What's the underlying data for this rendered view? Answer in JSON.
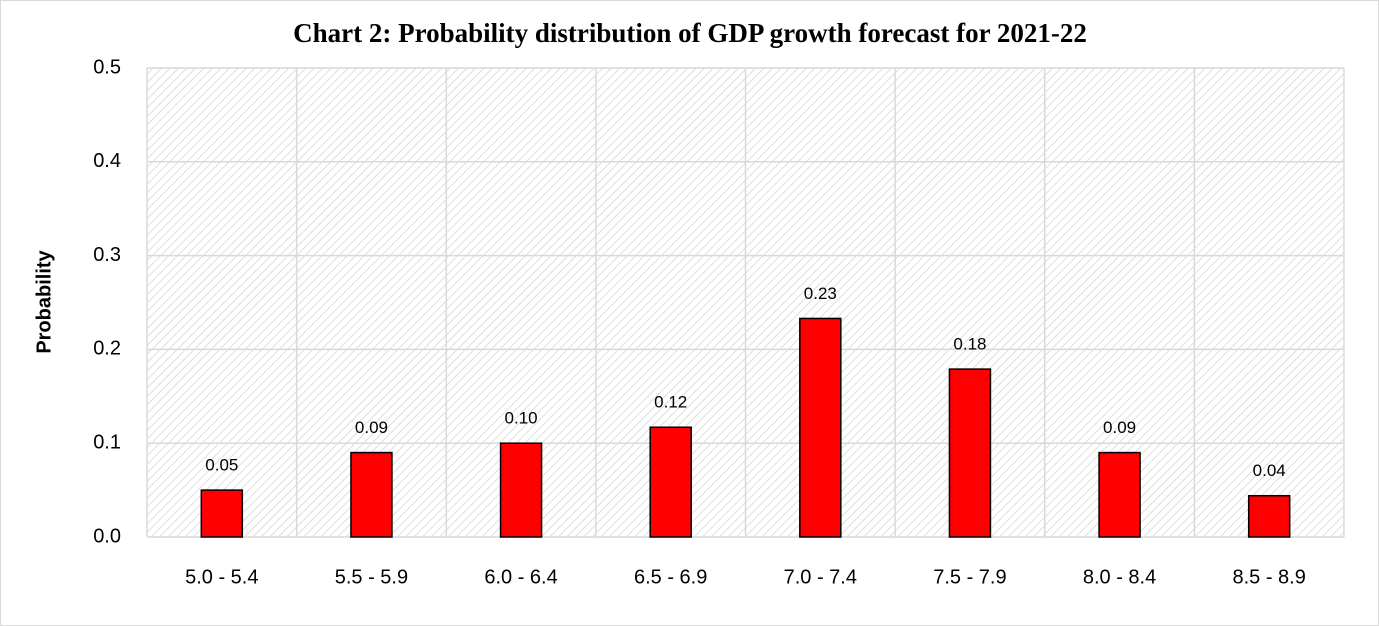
{
  "chart_data": {
    "type": "bar",
    "title": "Chart 2: Probability distribution of  GDP growth forecast for 2021-22",
    "y_label": "Probability",
    "categories": [
      "5.0 - 5.4",
      "5.5 - 5.9",
      "6.0 - 6.4",
      "6.5 - 6.9",
      "7.0 - 7.4",
      "7.5 - 7.9",
      "8.0 - 8.4",
      "8.5 - 8.9"
    ],
    "values": [
      0.05,
      0.09,
      0.1,
      0.117,
      0.233,
      0.179,
      0.09,
      0.044
    ],
    "value_labels": [
      "0.05",
      "0.09",
      "0.10",
      "0.12",
      "0.23",
      "0.18",
      "0.09",
      "0.04"
    ],
    "color": "#ff0000",
    "ylim": [
      0,
      0.5
    ],
    "yticks": [
      {
        "value": 0,
        "label": "0.0"
      },
      0.1,
      0.2,
      0.3,
      0.4,
      0.5
    ],
    "grid": true
  }
}
